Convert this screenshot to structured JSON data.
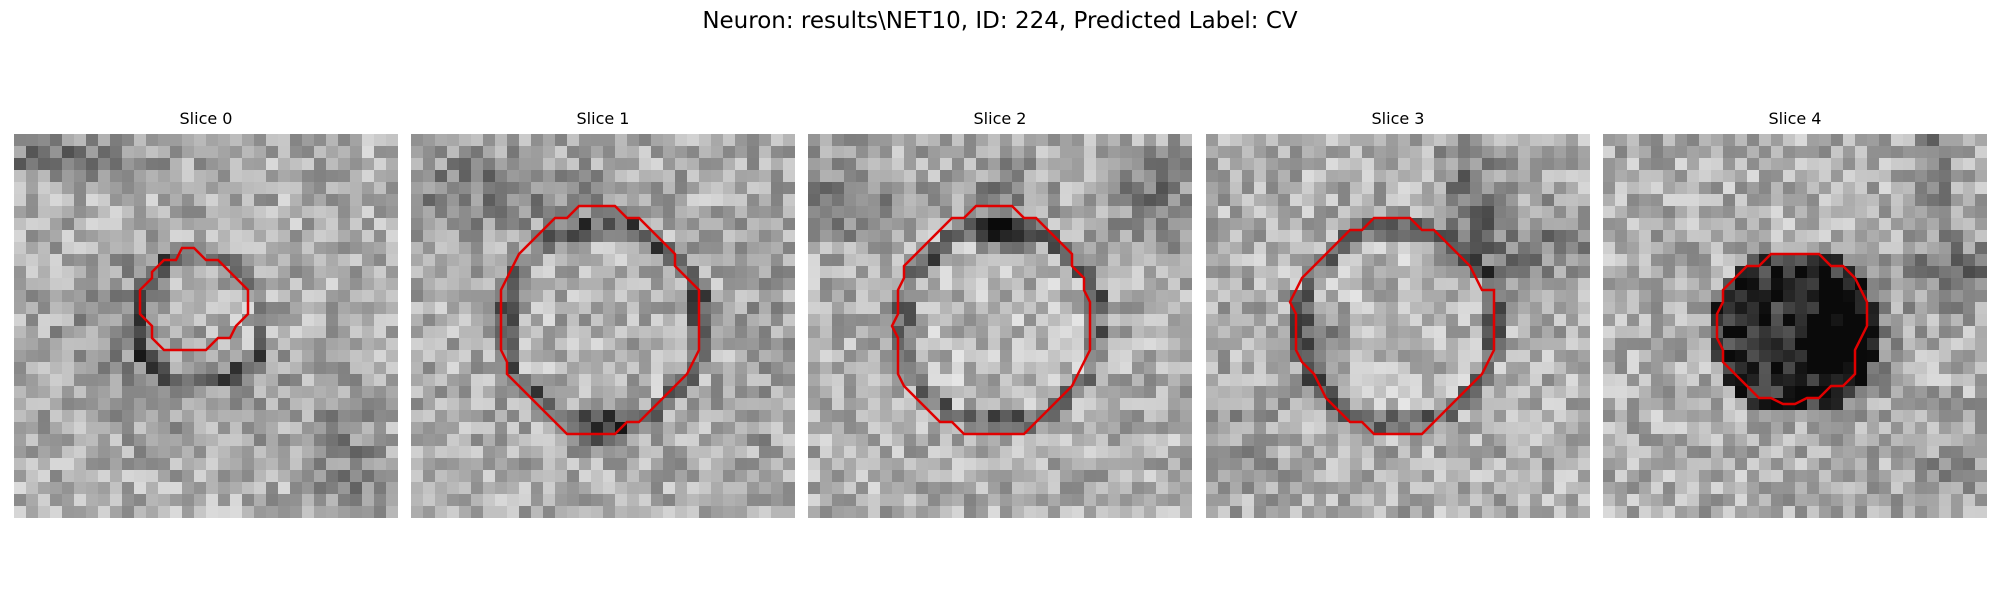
{
  "figure": {
    "title": "Neuron: results\\NET10, ID: 224, Predicted Label: CV"
  },
  "panels": [
    {
      "title": "Slice 0",
      "image_description": "grayscale EM patch, faint dark ring with small red contour",
      "contour_color": "#e00000"
    },
    {
      "title": "Slice 1",
      "image_description": "grayscale EM patch, dark vesicle ring enclosed by red contour",
      "contour_color": "#e00000"
    },
    {
      "title": "Slice 2",
      "image_description": "grayscale EM patch, bright vesicle with dark ring enclosed by red contour",
      "contour_color": "#e00000"
    },
    {
      "title": "Slice 3",
      "image_description": "grayscale EM patch, vesicle ring with red contour",
      "contour_color": "#e00000"
    },
    {
      "title": "Slice 4",
      "image_description": "grayscale EM patch, dark blob enclosed by small red contour",
      "contour_color": "#e00000"
    }
  ]
}
